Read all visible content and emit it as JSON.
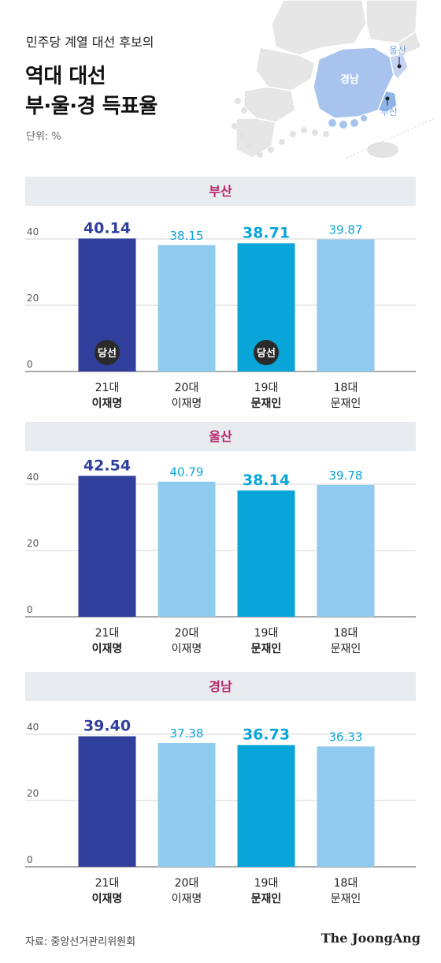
{
  "header": {
    "subtitle": "민주당 계열 대선 후보의",
    "title_line1": "역대 대선",
    "title_line2": "부·울·경 득표율",
    "unit": "단위: %"
  },
  "map": {
    "label_ulsan": "울산",
    "label_gyeongnam": "경남",
    "label_busan": "부산",
    "colors": {
      "gyeongnam": "#a8c4ee",
      "busan": "#8fb4e8",
      "tiles": "#e6e6e6"
    }
  },
  "colors": {
    "dark_bar": "#2f3f9b",
    "mid_bar": "#0aa5d8",
    "light_bar": "#8fcbee",
    "region_title": "#b8256b",
    "badge": "#2a2a2a"
  },
  "chart_data": [
    {
      "type": "bar",
      "title": "부산",
      "categories": [
        "21대 이재명",
        "20대 이재명",
        "19대 문재인",
        "18대 문재인"
      ],
      "values": [
        40.14,
        38.15,
        38.71,
        39.87
      ],
      "labels": [
        "40.14",
        "38.15",
        "38.71",
        "39.87"
      ],
      "bar_styles": [
        "dark",
        "light",
        "mid",
        "light"
      ],
      "bold_label": [
        true,
        false,
        true,
        false
      ],
      "winner_badge": [
        true,
        false,
        true,
        false
      ],
      "ylim": [
        0,
        50
      ],
      "yticks": [
        0,
        20,
        40
      ],
      "ytick_labels": [
        "0",
        "20",
        "40"
      ]
    },
    {
      "type": "bar",
      "title": "울산",
      "categories": [
        "21대 이재명",
        "20대 이재명",
        "19대 문재인",
        "18대 문재인"
      ],
      "values": [
        42.54,
        40.79,
        38.14,
        39.78
      ],
      "labels": [
        "42.54",
        "40.79",
        "38.14",
        "39.78"
      ],
      "bar_styles": [
        "dark",
        "light",
        "mid",
        "light"
      ],
      "bold_label": [
        true,
        false,
        true,
        false
      ],
      "winner_badge": [
        false,
        false,
        false,
        false
      ],
      "ylim": [
        0,
        50
      ],
      "yticks": [
        0,
        20,
        40
      ],
      "ytick_labels": [
        "0",
        "20",
        "40"
      ]
    },
    {
      "type": "bar",
      "title": "경남",
      "categories": [
        "21대 이재명",
        "20대 이재명",
        "19대 문재인",
        "18대 문재인"
      ],
      "values": [
        39.4,
        37.38,
        36.73,
        36.33
      ],
      "labels": [
        "39.40",
        "37.38",
        "36.73",
        "36.33"
      ],
      "bar_styles": [
        "dark",
        "light",
        "mid",
        "light"
      ],
      "bold_label": [
        true,
        false,
        true,
        false
      ],
      "winner_badge": [
        false,
        false,
        false,
        false
      ],
      "ylim": [
        0,
        50
      ],
      "yticks": [
        0,
        20,
        40
      ],
      "ytick_labels": [
        "0",
        "20",
        "40"
      ]
    }
  ],
  "categories_display": [
    {
      "term": "21대",
      "name": "이재명"
    },
    {
      "term": "20대",
      "name": "이재명"
    },
    {
      "term": "19대",
      "name": "문재인"
    },
    {
      "term": "18대",
      "name": "문재인"
    }
  ],
  "badge_text": "당선",
  "footer": {
    "source": "자료: 중앙선거관리위원회",
    "logo": "The JoongAng"
  }
}
